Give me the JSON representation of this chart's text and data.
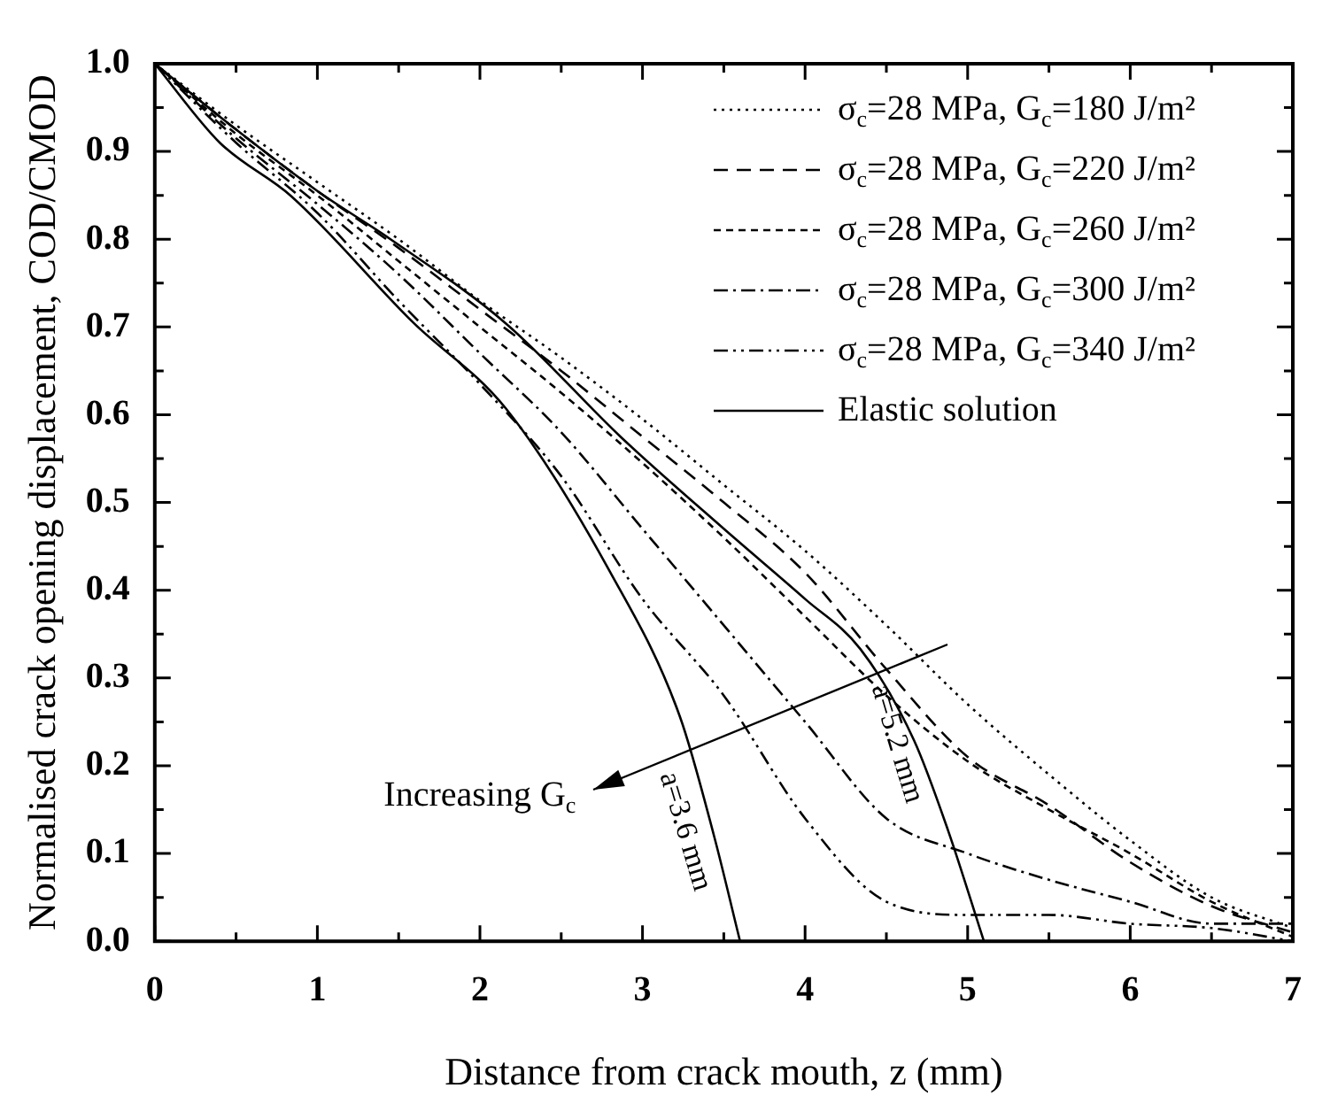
{
  "chart_data": {
    "type": "line",
    "xlabel": "Distance from crack mouth, z (mm)",
    "ylabel": "Normalised crack opening displacement, COD/CMOD",
    "xlim": [
      0,
      7
    ],
    "xticks": [
      0,
      1,
      2,
      3,
      4,
      5,
      6,
      7
    ],
    "ylim": [
      0,
      1.0
    ],
    "yticks": [
      {
        "value": 0,
        "label": "0.0"
      },
      0.1,
      0.2,
      0.3,
      0.4,
      0.5,
      0.6,
      0.7,
      0.8,
      0.9,
      {
        "value": 1,
        "label": "1.0"
      }
    ],
    "legend": "top right",
    "marker": "none",
    "series": [
      {
        "name": "σ$_{c}$=28 MPa, G$_{c}$=180 J/m²",
        "color": "#000000",
        "line_style": "dotted",
        "x": [
          0,
          0.5,
          1,
          1.5,
          2,
          2.5,
          3,
          3.5,
          4,
          4.5,
          5,
          5.5,
          6,
          6.5,
          7
        ],
        "values": [
          1.0,
          0.93,
          0.865,
          0.8,
          0.73,
          0.665,
          0.595,
          0.52,
          0.445,
          0.36,
          0.27,
          0.19,
          0.115,
          0.05,
          0.015
        ]
      },
      {
        "name": "σ$_{c}$=28 MPa, G$_{c}$=220 J/m²",
        "color": "#000000",
        "line_style": "dashed",
        "x": [
          0,
          0.5,
          1,
          1.5,
          2,
          2.5,
          3,
          3.5,
          4,
          4.5,
          5,
          5.5,
          6,
          6.5,
          7
        ],
        "values": [
          1.0,
          0.925,
          0.855,
          0.79,
          0.72,
          0.65,
          0.575,
          0.5,
          0.42,
          0.31,
          0.21,
          0.155,
          0.09,
          0.04,
          0.01
        ]
      },
      {
        "name": "σ$_{c}$=28 MPa, G$_{c}$=260 J/m²",
        "color": "#000000",
        "line_style": "shortdash",
        "x": [
          0,
          0.5,
          1,
          1.5,
          2,
          2.5,
          3,
          3.5,
          4,
          4.5,
          5,
          5.5,
          6,
          6.5,
          7
        ],
        "values": [
          1.0,
          0.92,
          0.85,
          0.775,
          0.7,
          0.625,
          0.545,
          0.46,
          0.37,
          0.28,
          0.205,
          0.15,
          0.1,
          0.045,
          0.005
        ]
      },
      {
        "name": "σ$_{c}$=28 MPa, G$_{c}$=300 J/m²",
        "color": "#000000",
        "line_style": "dashdot",
        "x": [
          0,
          0.5,
          1,
          1.5,
          2,
          2.5,
          3,
          3.5,
          4,
          4.5,
          5,
          5.5,
          6,
          6.5,
          7
        ],
        "values": [
          1.0,
          0.915,
          0.84,
          0.76,
          0.67,
          0.58,
          0.47,
          0.36,
          0.25,
          0.14,
          0.1,
          0.07,
          0.045,
          0.02,
          0.02
        ]
      },
      {
        "name": "σ$_{c}$=28 MPa, G$_{c}$=340 J/m²",
        "color": "#000000",
        "line_style": "dashdotdot",
        "x": [
          0,
          0.5,
          1,
          1.5,
          2,
          2.5,
          3,
          3.5,
          4,
          4.5,
          5,
          5.5,
          6,
          6.5,
          7
        ],
        "values": [
          1.0,
          0.91,
          0.83,
          0.73,
          0.635,
          0.53,
          0.39,
          0.28,
          0.14,
          0.045,
          0.03,
          0.03,
          0.02,
          0.015,
          0.0
        ]
      },
      {
        "name": "Elastic solution",
        "color": "#000000",
        "line_style": "solid",
        "x": [
          0,
          0.4,
          0.84,
          1.59,
          2.16,
          2.8,
          3.23,
          3.44,
          3.6
        ],
        "values": [
          1.0,
          0.91,
          0.849,
          0.705,
          0.607,
          0.421,
          0.256,
          0.12,
          0.0
        ]
      },
      {
        "color": "#000000",
        "line_style": "solid",
        "x": [
          0,
          0.5,
          1,
          1.45,
          2.16,
          2.87,
          3.5,
          4.0,
          4.34,
          4.67,
          4.88,
          5.1
        ],
        "values": [
          1.0,
          0.925,
          0.855,
          0.8,
          0.704,
          0.574,
          0.47,
          0.39,
          0.333,
          0.229,
          0.126,
          0.0
        ]
      }
    ],
    "annotations": [
      "Increasing G$_{c}$",
      "a=3.6 mm",
      "a=5.2 mm"
    ]
  }
}
